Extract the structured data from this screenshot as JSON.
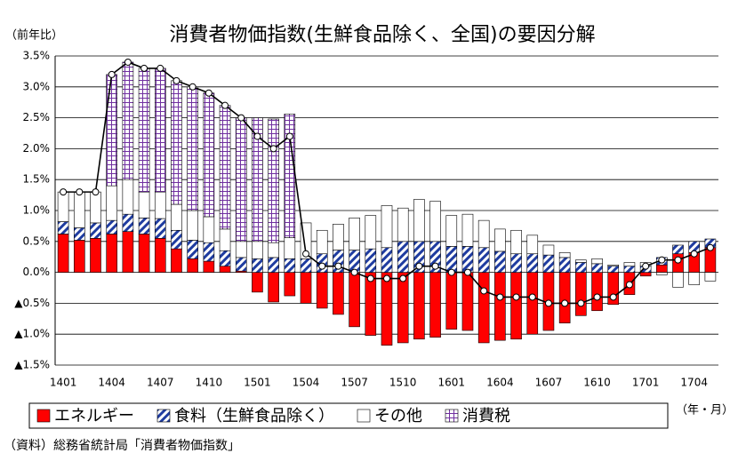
{
  "chart_data": {
    "type": "bar",
    "stacked": true,
    "title": "消費者物価指数(生鮮食品除く、全国)の要因分解",
    "y_label": "（前年比）",
    "x_label": "（年・月）",
    "source": "（資料）総務省統計局「消費者物価指数」",
    "categories": [
      "1401",
      null,
      null,
      "1404",
      null,
      null,
      "1407",
      null,
      null,
      "1410",
      null,
      null,
      "1501",
      null,
      null,
      "1504",
      null,
      null,
      "1507",
      null,
      null,
      "1510",
      null,
      null,
      "1601",
      null,
      null,
      "1604",
      null,
      null,
      "1607",
      null,
      null,
      "1610",
      null,
      null,
      "1701",
      null,
      null,
      "1704",
      null
    ],
    "ylim": [
      -1.5,
      3.5
    ],
    "yticks": [
      {
        "value": -1.5,
        "label": "▲1.5%"
      },
      {
        "value": -1.0,
        "label": "▲1.0%"
      },
      {
        "value": -0.5,
        "label": "▲0.5%"
      },
      {
        "value": 0,
        "label": "0.0%"
      },
      {
        "value": 0.5,
        "label": "0.5%"
      },
      {
        "value": 1.0,
        "label": "1.0%"
      },
      {
        "value": 1.5,
        "label": "1.5%"
      },
      {
        "value": 2.0,
        "label": "2.0%"
      },
      {
        "value": 2.5,
        "label": "2.5%"
      },
      {
        "value": 3.0,
        "label": "3.0%"
      },
      {
        "value": 3.5,
        "label": "3.5%"
      }
    ],
    "grid": true,
    "series": [
      {
        "name": "エネルギー",
        "color": "#ff0000",
        "values": [
          0.62,
          0.52,
          0.55,
          0.62,
          0.66,
          0.62,
          0.55,
          0.38,
          0.22,
          0.18,
          0.1,
          0.02,
          -0.32,
          -0.48,
          -0.38,
          -0.5,
          -0.58,
          -0.68,
          -0.88,
          -1.02,
          -1.18,
          -1.14,
          -1.08,
          -1.05,
          -0.92,
          -0.94,
          -1.14,
          -1.1,
          -1.08,
          -1.0,
          -0.94,
          -0.82,
          -0.7,
          -0.62,
          -0.52,
          -0.36,
          -0.06,
          0.12,
          0.3,
          0.32,
          0.4
        ]
      },
      {
        "name": "食料（生鮮食品除く）",
        "color": "#1f3ca0",
        "pattern": "stripes",
        "values": [
          0.2,
          0.2,
          0.25,
          0.22,
          0.28,
          0.26,
          0.32,
          0.3,
          0.3,
          0.3,
          0.25,
          0.22,
          0.22,
          0.24,
          0.22,
          0.22,
          0.3,
          0.36,
          0.36,
          0.38,
          0.4,
          0.5,
          0.5,
          0.5,
          0.42,
          0.42,
          0.4,
          0.34,
          0.3,
          0.3,
          0.28,
          0.24,
          0.16,
          0.14,
          0.1,
          0.1,
          0.1,
          0.12,
          0.14,
          0.18,
          0.14
        ]
      },
      {
        "name": "その他",
        "color": "#ffffff",
        "values": [
          0.48,
          0.58,
          0.5,
          0.56,
          0.56,
          0.42,
          0.43,
          0.42,
          0.48,
          0.42,
          0.35,
          0.26,
          0.28,
          0.24,
          0.34,
          0.58,
          0.38,
          0.42,
          0.52,
          0.54,
          0.68,
          0.54,
          0.68,
          0.65,
          0.5,
          0.52,
          0.44,
          0.36,
          0.38,
          0.3,
          0.16,
          0.08,
          0.04,
          0.08,
          0.02,
          0.06,
          0.06,
          -0.04,
          -0.24,
          -0.2,
          -0.14
        ]
      },
      {
        "name": "消費税",
        "color": "#7030a0",
        "pattern": "grid",
        "values": [
          0,
          0,
          0,
          1.8,
          1.9,
          2.0,
          2.0,
          2.0,
          2.0,
          2.0,
          2.0,
          2.0,
          2.0,
          2.0,
          2.0,
          0,
          0,
          0,
          0,
          0,
          0,
          0,
          0,
          0,
          0,
          0,
          0,
          0,
          0,
          0,
          0,
          0,
          0,
          0,
          0,
          0,
          0,
          0,
          0,
          0,
          0
        ]
      },
      {
        "type": "line",
        "color": "#000000",
        "values": [
          1.3,
          1.3,
          1.3,
          3.2,
          3.4,
          3.3,
          3.3,
          3.1,
          3.0,
          2.9,
          2.7,
          2.5,
          2.2,
          2.0,
          2.2,
          0.3,
          0.1,
          0.1,
          0.0,
          -0.1,
          -0.1,
          -0.1,
          0.1,
          0.1,
          0.0,
          0.0,
          -0.3,
          -0.4,
          -0.4,
          -0.4,
          -0.5,
          -0.5,
          -0.5,
          -0.4,
          -0.4,
          -0.2,
          0.1,
          0.2,
          0.2,
          0.3,
          0.4
        ]
      }
    ]
  }
}
